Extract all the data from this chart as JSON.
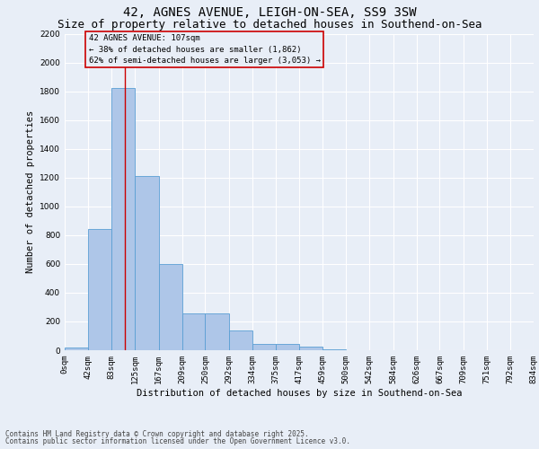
{
  "title1": "42, AGNES AVENUE, LEIGH-ON-SEA, SS9 3SW",
  "title2": "Size of property relative to detached houses in Southend-on-Sea",
  "xlabel": "Distribution of detached houses by size in Southend-on-Sea",
  "ylabel": "Number of detached properties",
  "bar_values": [
    20,
    845,
    1820,
    1210,
    600,
    255,
    255,
    140,
    42,
    42,
    28,
    5,
    0,
    0,
    0,
    0,
    0,
    0,
    0,
    0
  ],
  "bin_edges": [
    0,
    42,
    83,
    125,
    167,
    209,
    250,
    292,
    334,
    375,
    417,
    459,
    500,
    542,
    584,
    626,
    667,
    709,
    751,
    792,
    834
  ],
  "tick_labels": [
    "0sqm",
    "42sqm",
    "83sqm",
    "125sqm",
    "167sqm",
    "209sqm",
    "250sqm",
    "292sqm",
    "334sqm",
    "375sqm",
    "417sqm",
    "459sqm",
    "500sqm",
    "542sqm",
    "584sqm",
    "626sqm",
    "667sqm",
    "709sqm",
    "751sqm",
    "792sqm",
    "834sqm"
  ],
  "bar_color": "#aec6e8",
  "bar_edge_color": "#5a9fd4",
  "vline_x": 107,
  "vline_color": "#cc0000",
  "annotation_box_color": "#cc0000",
  "annotation_text_line1": "42 AGNES AVENUE: 107sqm",
  "annotation_text_line2": "← 38% of detached houses are smaller (1,862)",
  "annotation_text_line3": "62% of semi-detached houses are larger (3,053) →",
  "ylim": [
    0,
    2200
  ],
  "yticks": [
    0,
    200,
    400,
    600,
    800,
    1000,
    1200,
    1400,
    1600,
    1800,
    2000,
    2200
  ],
  "footnote1": "Contains HM Land Registry data © Crown copyright and database right 2025.",
  "footnote2": "Contains public sector information licensed under the Open Government Licence v3.0.",
  "bg_color": "#e8eef7",
  "grid_color": "#ffffff",
  "title_fontsize": 10,
  "subtitle_fontsize": 9,
  "label_fontsize": 7.5,
  "tick_fontsize": 6.5,
  "annot_fontsize": 6.5,
  "footnote_fontsize": 5.5
}
